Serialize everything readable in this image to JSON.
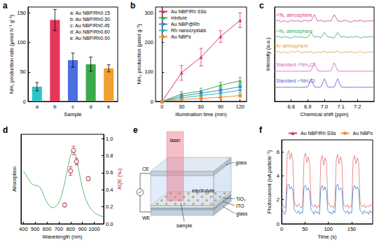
{
  "chart_data": [
    {
      "panel": "a",
      "type": "bar",
      "categories": [
        "a",
        "b",
        "c",
        "d",
        "e"
      ],
      "values": [
        25,
        138,
        70,
        63,
        56
      ],
      "errors": [
        7,
        18,
        12,
        12,
        6
      ],
      "colors": [
        "#2ec4c4",
        "#e8355a",
        "#4a6fe3",
        "#3aaa4a",
        "#f0a030"
      ],
      "x_label": "Sample",
      "y_label": "NH₃ production rate (μmol h⁻¹ g⁻¹)",
      "ylim": [
        0,
        160
      ],
      "yticks": [
        0,
        50,
        100,
        150
      ],
      "annotations": [
        "a: Au NBP/Rh0.15",
        "b: Au NBP/Rh0.30",
        "c: Au NBP/Rh0.45",
        "d: Au NBP/Rh0.60",
        "e: Au NBP/Rh0.90"
      ]
    },
    {
      "panel": "b",
      "type": "line",
      "x": [
        0,
        30,
        60,
        90,
        120
      ],
      "series": [
        {
          "name": "Au NBP/Rh SSs",
          "color": "#d6336c",
          "marker": "triangle",
          "values": [
            0,
            97,
            150,
            220,
            275
          ],
          "errors": [
            0,
            25,
            30,
            20,
            25
          ]
        },
        {
          "name": "mixture",
          "color": "#3aaa4a",
          "marker": "triangle",
          "values": [
            0,
            25,
            35,
            55,
            70
          ],
          "errors": [
            0,
            8,
            10,
            10,
            12
          ]
        },
        {
          "name": "Au NBP@Rh",
          "color": "#4a7fd8",
          "marker": "circle",
          "values": [
            0,
            18,
            28,
            38,
            50
          ],
          "errors": [
            0,
            6,
            8,
            8,
            10
          ]
        },
        {
          "name": "Rh nanocrystals",
          "color": "#2ab8b8",
          "marker": "diamond",
          "values": [
            0,
            12,
            20,
            28,
            38
          ],
          "errors": [
            0,
            5,
            6,
            6,
            8
          ]
        },
        {
          "name": "Au NBPs",
          "color": "#f08c30",
          "marker": "circle",
          "values": [
            0,
            6,
            10,
            14,
            20
          ],
          "errors": [
            0,
            4,
            5,
            5,
            6
          ]
        }
      ],
      "x_label": "Illumination time (min)",
      "y_label": "NH₃ production (μmol g⁻¹)",
      "xlim": [
        -10,
        130
      ],
      "xticks": [
        0,
        30,
        60,
        90,
        120
      ],
      "ylim": [
        0,
        320
      ],
      "yticks": [
        0,
        100,
        200,
        300
      ],
      "legend": "top-left"
    },
    {
      "panel": "c",
      "type": "line",
      "x": [
        6.7,
        6.72,
        6.74,
        6.76,
        6.78,
        6.8,
        6.82,
        6.84,
        6.86,
        6.88,
        6.9,
        6.92,
        6.94,
        6.96,
        6.98,
        7.0,
        7.02,
        7.04,
        7.06,
        7.08,
        7.1,
        7.12,
        7.14,
        7.16,
        7.18,
        7.2,
        7.22,
        7.24,
        7.26,
        7.28,
        7.3
      ],
      "series": [
        {
          "name": "¹⁵N₂ atmosphere",
          "color": "#d03a8a",
          "values": [
            8.5,
            8.6,
            8.45,
            8.55,
            8.4,
            8.6,
            8.5,
            8.55,
            8.45,
            8.6,
            8.5,
            8.55,
            9.2,
            8.5,
            8.6,
            8.45,
            8.55,
            8.5,
            9.2,
            8.55,
            8.45,
            8.6,
            8.5,
            8.4,
            8.55,
            8.5,
            8.6,
            8.45,
            8.55,
            8.5,
            8.6
          ]
        },
        {
          "name": "¹⁴N₂ atmosphere",
          "color": "#2aa86a",
          "values": [
            6.8,
            6.9,
            6.75,
            6.85,
            6.8,
            6.7,
            6.9,
            6.8,
            6.85,
            6.75,
            6.8,
            7.3,
            6.8,
            6.9,
            6.75,
            7.3,
            6.85,
            6.8,
            6.7,
            7.3,
            6.8,
            6.9,
            6.75,
            6.85,
            6.8,
            6.9,
            6.7,
            6.85,
            6.8,
            6.9,
            6.75
          ]
        },
        {
          "name": "Ar atmosphere",
          "color": "#e0a040",
          "values": [
            5.2,
            5.3,
            5.15,
            5.25,
            5.1,
            5.3,
            5.2,
            5.35,
            5.15,
            5.25,
            5.2,
            5.3,
            5.1,
            5.25,
            5.2,
            5.3,
            5.15,
            5.25,
            5.2,
            5.35,
            5.1,
            5.25,
            5.2,
            5.3,
            5.15,
            5.2,
            5.3,
            5.1,
            5.25,
            5.2,
            5.3
          ]
        },
        {
          "name": "Standard ¹⁵NH₄Cl",
          "color": "#d060c0",
          "values": [
            3.2,
            3.2,
            3.2,
            3.2,
            3.2,
            3.2,
            3.2,
            3.2,
            3.2,
            3.2,
            3.2,
            3.25,
            4.1,
            3.25,
            3.2,
            3.2,
            3.2,
            3.25,
            4.1,
            3.25,
            3.2,
            3.2,
            3.2,
            3.2,
            3.2,
            3.2,
            3.2,
            3.2,
            3.2,
            3.2,
            3.2
          ]
        },
        {
          "name": "Standard ¹⁴NH₄Cl",
          "color": "#5a5ad0",
          "values": [
            1.5,
            1.5,
            1.5,
            1.5,
            1.5,
            1.5,
            1.5,
            1.5,
            1.5,
            1.5,
            1.55,
            2.4,
            1.55,
            1.5,
            1.55,
            2.4,
            1.55,
            1.5,
            1.55,
            2.4,
            1.55,
            1.5,
            1.5,
            1.5,
            1.5,
            1.5,
            1.5,
            1.5,
            1.5,
            1.5,
            1.5
          ]
        }
      ],
      "x_label": "Chemical shift (ppm)",
      "y_label": "Intensity (a.u.)",
      "xlim": [
        6.7,
        7.3
      ],
      "xticks": [
        6.8,
        6.9,
        {
          "value": 7,
          "label": "7.0"
        },
        7.1,
        7.2
      ],
      "ylim": [
        0,
        10
      ],
      "yticks": [],
      "tick_labels": "x"
    },
    {
      "panel": "d",
      "type": "line",
      "x": [
        400,
        420,
        440,
        460,
        480,
        500,
        520,
        540,
        560,
        580,
        600,
        620,
        640,
        660,
        680,
        700,
        720,
        740,
        760,
        780,
        800,
        820,
        840,
        860,
        880,
        900,
        920,
        950,
        980,
        1010,
        1040,
        1080
      ],
      "series": [
        {
          "type": "line",
          "color": "#3aaa5a",
          "values": [
            0.62,
            0.58,
            0.53,
            0.49,
            0.46,
            0.45,
            0.45,
            0.43,
            0.38,
            0.31,
            0.25,
            0.21,
            0.19,
            0.19,
            0.21,
            0.25,
            0.32,
            0.42,
            0.55,
            0.69,
            0.81,
            0.86,
            0.82,
            0.7,
            0.55,
            0.42,
            0.32,
            0.22,
            0.16,
            0.12,
            0.1,
            0.08
          ]
        },
        {
          "type": "scatter",
          "axis": "y2",
          "color": "#b0384a",
          "marker": "circle",
          "x": [
            750,
            800,
            825,
            850,
            950
          ],
          "values": [
            0.22,
            0.62,
            0.86,
            0.73,
            0.53
          ],
          "errors": [
            0.02,
            0.05,
            0.05,
            0.04,
            0.02
          ]
        }
      ],
      "x_label": "Wavelength (nm)",
      "y_label": "Absorption",
      "y2_label": "AQE (‰)",
      "xlim": [
        380,
        1080
      ],
      "xticks": [
        400,
        500,
        600,
        700,
        800,
        900,
        1000
      ],
      "ylim": [
        0,
        1.05
      ],
      "yticks": [],
      "y2lim": [
        0,
        1.05
      ],
      "y2ticks": [
        {
          "value": 0,
          "label": "0.0"
        },
        0.2,
        0.4,
        0.6,
        0.8,
        {
          "value": 1,
          "label": "1.0"
        }
      ]
    },
    {
      "panel": "e",
      "type": "diagram",
      "labels": {
        "laser": "laser",
        "top_glass": "glass",
        "electrolyte": "electrolyte",
        "tio2": "TiO₂",
        "ito": "ITO",
        "bottom_glass": "glass",
        "sample": "sample",
        "ce": "CE",
        "we": "WE"
      }
    },
    {
      "panel": "f",
      "type": "line",
      "x": [
        0,
        3,
        6,
        9,
        12,
        15,
        18,
        21,
        24,
        27,
        30,
        33,
        36,
        39,
        42,
        45,
        48,
        51,
        54,
        57,
        60,
        63,
        66,
        69,
        72,
        75,
        78,
        81,
        84,
        87,
        90,
        93,
        96,
        99,
        102,
        105,
        108,
        111,
        114,
        117,
        120,
        123,
        126,
        129,
        132,
        135,
        138,
        141,
        144,
        147,
        150,
        153,
        156,
        159,
        162,
        165,
        168,
        171,
        174,
        177,
        180,
        183,
        186,
        189,
        192,
        195
      ],
      "series": [
        {
          "name": "Au NBP/Rh SSs",
          "color": "#e8706a",
          "values": [
            1.4,
            1.6,
            1.3,
            1.5,
            5.8,
            6.1,
            5.4,
            5.9,
            5.2,
            1.9,
            1.6,
            1.4,
            1.7,
            1.5,
            1.3,
            1.6,
            5.5,
            5.9,
            5.1,
            5.6,
            5.0,
            1.8,
            1.5,
            1.4,
            1.6,
            1.3,
            1.5,
            1.4,
            5.3,
            5.7,
            4.9,
            5.5,
            5.1,
            1.8,
            1.6,
            1.4,
            1.5,
            1.3,
            1.6,
            5.4,
            5.8,
            5.0,
            5.6,
            5.2,
            1.7,
            1.5,
            1.4,
            1.6,
            1.3,
            1.5,
            1.4,
            5.3,
            5.7,
            5.0,
            5.5,
            5.1,
            1.8,
            1.5,
            1.4,
            1.6,
            1.3,
            1.5,
            1.4,
            1.6,
            1.5,
            1.4
          ]
        },
        {
          "name": "Au NBPs",
          "color": "#3a7fd0",
          "values": [
            0.9,
            1.1,
            0.8,
            1.0,
            3.2,
            3.3,
            2.9,
            3.1,
            2.8,
            1.2,
            1.0,
            0.9,
            1.1,
            0.8,
            1.0,
            0.9,
            3.1,
            3.2,
            2.8,
            3.0,
            2.7,
            1.2,
            1.0,
            0.8,
            1.1,
            0.9,
            1.0,
            0.8,
            3.0,
            3.2,
            2.8,
            3.1,
            2.7,
            1.1,
            0.9,
            1.0,
            0.8,
            1.1,
            0.9,
            3.1,
            3.3,
            2.8,
            3.0,
            2.9,
            1.2,
            1.0,
            0.9,
            1.1,
            0.8,
            1.0,
            0.9,
            3.0,
            3.2,
            2.9,
            3.1,
            2.8,
            1.1,
            1.0,
            0.8,
            1.1,
            0.9,
            1.0,
            0.8,
            1.1,
            0.9,
            1.0
          ]
        }
      ],
      "x_label": "Time (s)",
      "y_label": "Photocurrent (nA particle⁻¹)",
      "xlim": [
        0,
        195
      ],
      "xticks": [
        0,
        50,
        100,
        150
      ],
      "ylim": [
        0,
        7
      ],
      "yticks": [
        0,
        2,
        4,
        6
      ],
      "legend": "top-right"
    }
  ]
}
